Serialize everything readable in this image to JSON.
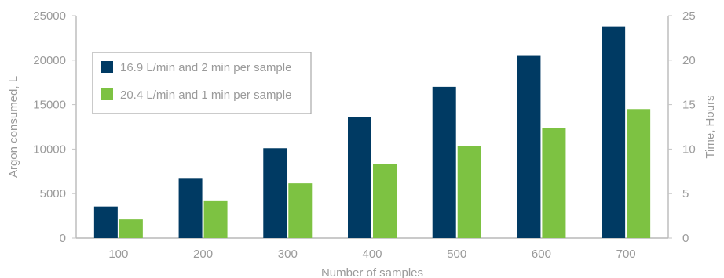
{
  "chart_data": {
    "type": "bar",
    "categories": [
      "100",
      "200",
      "300",
      "400",
      "500",
      "600",
      "700"
    ],
    "series": [
      {
        "name": "16.9 L/min and 2 min per sample",
        "color": "#003a63",
        "values": [
          3550,
          6750,
          10100,
          13600,
          17000,
          20550,
          23800
        ]
      },
      {
        "name": "20.4 L/min and 1 min per sample",
        "color": "#7dc242",
        "values": [
          2100,
          4150,
          6150,
          8350,
          10300,
          12400,
          14500
        ]
      }
    ],
    "xlabel": "Number of samples",
    "ylabel": "Argon consumed, L",
    "y2label": "Time, Hours",
    "ylim": [
      0,
      25000
    ],
    "y2lim": [
      0,
      25
    ],
    "yticks": [
      "0",
      "5000",
      "10000",
      "15000",
      "20000",
      "25000"
    ],
    "y2ticks": [
      "0",
      "5",
      "10",
      "15",
      "20",
      "25"
    ],
    "grid": false,
    "legend_position": "top-left"
  }
}
